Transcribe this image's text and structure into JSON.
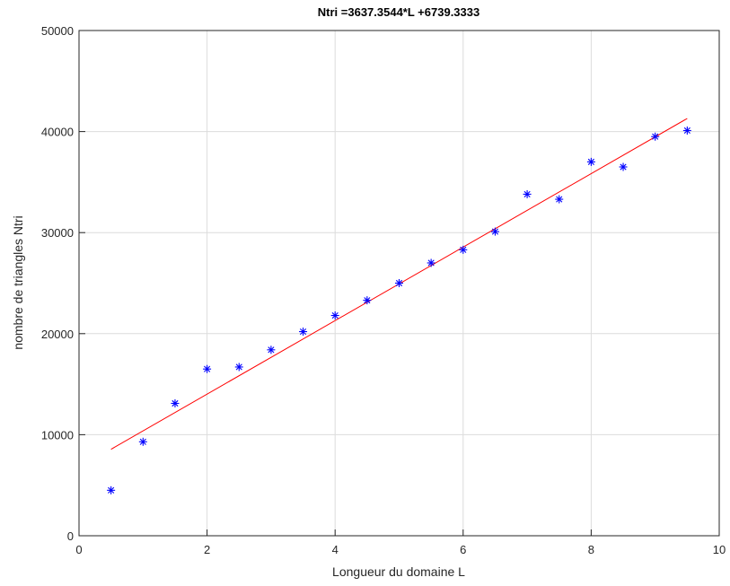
{
  "chart_data": {
    "type": "scatter",
    "title": "Ntri =3637.3544*L +6739.3333",
    "xlabel": "Longueur du domaine L",
    "ylabel": "nombre de triangles Ntri",
    "xlim": [
      0,
      10
    ],
    "ylim": [
      0,
      50000
    ],
    "xticks": [
      "0",
      "2",
      "4",
      "6",
      "8",
      "10"
    ],
    "yticks": [
      "0",
      "10000",
      "20000",
      "30000",
      "40000",
      "50000"
    ],
    "grid": true,
    "series": [
      {
        "kind": "scatter",
        "marker": "asterisk",
        "color": "#0000ff",
        "x": [
          0.5,
          1,
          1.5,
          2,
          2.5,
          3,
          3.5,
          4,
          4.5,
          5,
          5.5,
          6,
          6.5,
          7,
          7.5,
          8,
          8.5,
          9,
          9.5
        ],
        "y": [
          4500,
          9300,
          13100,
          16500,
          16700,
          18400,
          20200,
          21800,
          23300,
          25000,
          27000,
          28300,
          30100,
          33800,
          33300,
          37000,
          36500,
          39500,
          40100
        ]
      },
      {
        "kind": "line",
        "color": "#ff0000",
        "slope": 3637.3544,
        "intercept": 6739.3333,
        "x_range": [
          0.5,
          9.5
        ]
      }
    ]
  }
}
